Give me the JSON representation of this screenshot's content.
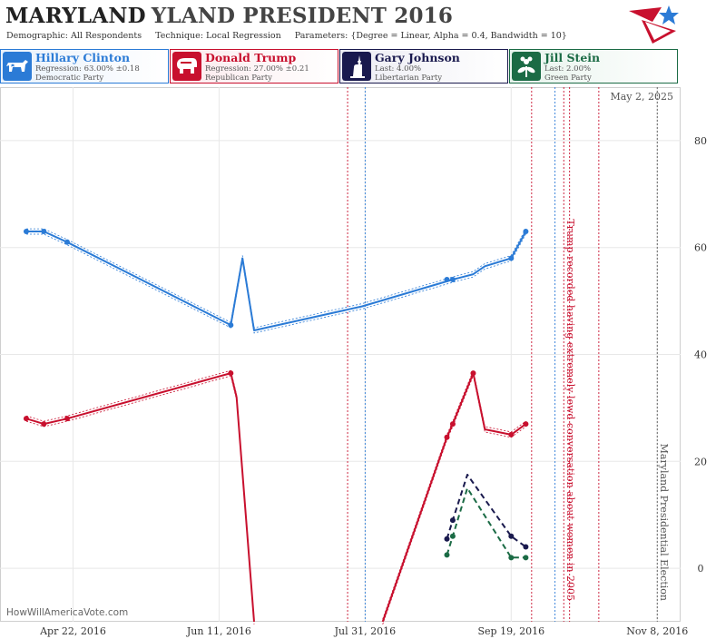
{
  "header": {
    "state": "MARYLAND",
    "title_rest": "YLAND PRESIDENT 2016",
    "demographic_label": "Demographic:",
    "demographic_value": "All Respondents",
    "technique_label": "Technique:",
    "technique_value": "Local Regression",
    "parameters_label": "Parameters:",
    "parameters_value": "{Degree = Linear, Alpha = 0.4, Bandwidth = 10}"
  },
  "candidates": [
    {
      "name": "Hillary Clinton",
      "stat": "Regression: 63.00% ±0.18",
      "party": "Democratic Party",
      "color": "#2b7bd6",
      "bg": "#e8f1fb",
      "icon": "donkey-icon"
    },
    {
      "name": "Donald Trump",
      "stat": "Regression: 27.00% ±0.21",
      "party": "Republican Party",
      "color": "#c8102e",
      "bg": "#fbe9ec",
      "icon": "elephant-icon"
    },
    {
      "name": "Gary Johnson",
      "stat": "Last: 4.00%",
      "party": "Libertarian Party",
      "color": "#1a1a4e",
      "bg": "#ececf3",
      "icon": "liberty-statue-icon"
    },
    {
      "name": "Jill Stein",
      "stat": "Last: 2.00%",
      "party": "Green Party",
      "color": "#1b6b45",
      "bg": "#e7f3ec",
      "icon": "flower-icon"
    }
  ],
  "watermark": "HowWillAmericaVote.com",
  "chart_data": {
    "type": "line",
    "date_label": "May 2, 2025",
    "x_ticks": [
      "2016-04-22",
      "2016-06-11",
      "2016-07-31",
      "2016-09-19",
      "2016-11-08"
    ],
    "x_tick_labels": [
      "Apr 22, 2016",
      "Jun 11, 2016",
      "Jul 31, 2016",
      "Sep 19, 2016",
      "Nov 8, 2016"
    ],
    "x_range": [
      "2016-03-28",
      "2016-11-16"
    ],
    "ylim": [
      -10,
      90
    ],
    "y_ticks": [
      0,
      20,
      40,
      60,
      80
    ],
    "grid": true,
    "annotations": [
      {
        "date": "2016-10-07",
        "text": "Trump recorded having extremely lewd conversation about women in 2005",
        "color": "#c8102e"
      },
      {
        "date": "2016-11-08",
        "text": "Maryland Presidential Election",
        "color": "#555555"
      }
    ],
    "event_lines": [
      {
        "date": "2016-07-25",
        "color": "#c8102e"
      },
      {
        "date": "2016-07-31",
        "color": "#2b7bd6"
      },
      {
        "date": "2016-09-26",
        "color": "#c8102e"
      },
      {
        "date": "2016-10-04",
        "color": "#2b7bd6"
      },
      {
        "date": "2016-10-09",
        "color": "#c8102e"
      },
      {
        "date": "2016-10-19",
        "color": "#c8102e"
      }
    ],
    "series": [
      {
        "name": "Hillary Clinton",
        "color": "#2b7bd6",
        "dashed": false,
        "band": true,
        "line": [
          [
            "2016-04-06",
            63
          ],
          [
            "2016-04-12",
            63
          ],
          [
            "2016-04-20",
            61
          ],
          [
            "2016-06-15",
            45.5
          ],
          [
            "2016-06-19",
            58
          ],
          [
            "2016-06-23",
            44.5
          ],
          [
            "2016-07-30",
            49
          ],
          [
            "2016-08-30",
            54
          ],
          [
            "2016-09-06",
            55
          ],
          [
            "2016-09-10",
            56.5
          ],
          [
            "2016-09-19",
            58
          ],
          [
            "2016-09-24",
            63
          ]
        ],
        "points": [
          [
            "2016-04-06",
            63
          ],
          [
            "2016-04-12",
            63
          ],
          [
            "2016-04-20",
            61
          ],
          [
            "2016-06-15",
            45.5
          ],
          [
            "2016-08-28",
            54
          ],
          [
            "2016-08-30",
            54
          ],
          [
            "2016-09-19",
            58
          ],
          [
            "2016-09-24",
            63
          ]
        ]
      },
      {
        "name": "Donald Trump",
        "color": "#c8102e",
        "dashed": false,
        "band": true,
        "line": [
          [
            "2016-04-06",
            28
          ],
          [
            "2016-04-12",
            27
          ],
          [
            "2016-04-20",
            28
          ],
          [
            "2016-06-15",
            36.5
          ],
          [
            "2016-06-17",
            32
          ],
          [
            "2016-06-23",
            -10
          ]
        ],
        "line2": [
          [
            "2016-08-06",
            -10
          ],
          [
            "2016-08-28",
            24.5
          ],
          [
            "2016-08-30",
            27
          ],
          [
            "2016-09-06",
            36.5
          ],
          [
            "2016-09-10",
            26
          ],
          [
            "2016-09-19",
            25
          ],
          [
            "2016-09-24",
            27
          ]
        ],
        "points": [
          [
            "2016-04-06",
            28
          ],
          [
            "2016-04-12",
            27
          ],
          [
            "2016-04-20",
            28
          ],
          [
            "2016-06-15",
            36.5
          ],
          [
            "2016-08-28",
            24.5
          ],
          [
            "2016-08-30",
            27
          ],
          [
            "2016-09-06",
            36.5
          ],
          [
            "2016-09-19",
            25
          ],
          [
            "2016-09-24",
            27
          ]
        ]
      },
      {
        "name": "Gary Johnson",
        "color": "#1a1a4e",
        "dashed": true,
        "band": false,
        "line": [
          [
            "2016-08-28",
            5.5
          ],
          [
            "2016-08-30",
            9
          ],
          [
            "2016-09-04",
            17.5
          ],
          [
            "2016-09-19",
            6
          ],
          [
            "2016-09-24",
            4
          ]
        ],
        "points": [
          [
            "2016-08-28",
            5.5
          ],
          [
            "2016-08-30",
            9
          ],
          [
            "2016-09-19",
            6
          ],
          [
            "2016-09-24",
            4
          ]
        ]
      },
      {
        "name": "Jill Stein",
        "color": "#1b6b45",
        "dashed": true,
        "band": false,
        "line": [
          [
            "2016-08-28",
            2.5
          ],
          [
            "2016-08-30",
            6
          ],
          [
            "2016-09-04",
            15
          ],
          [
            "2016-09-19",
            2
          ],
          [
            "2016-09-24",
            2
          ]
        ],
        "points": [
          [
            "2016-08-28",
            2.5
          ],
          [
            "2016-08-30",
            6
          ],
          [
            "2016-09-19",
            2
          ],
          [
            "2016-09-24",
            2
          ]
        ]
      }
    ]
  }
}
